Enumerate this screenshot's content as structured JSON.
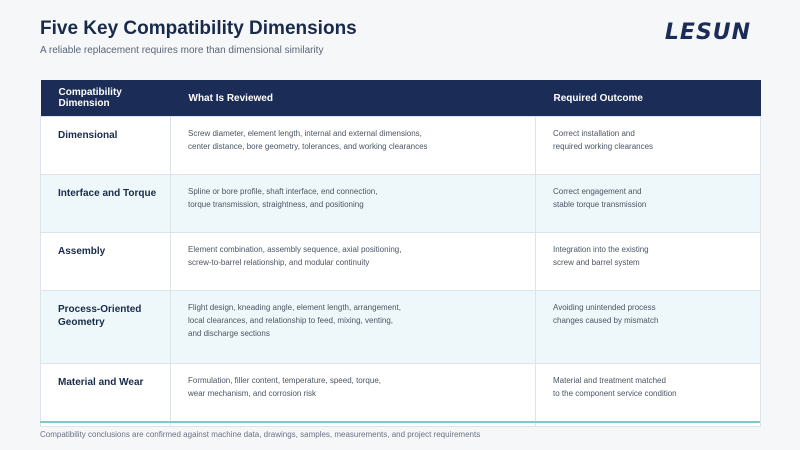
{
  "header": {
    "title": "Five Key Compatibility Dimensions",
    "subtitle": "A reliable replacement requires more than dimensional similarity",
    "logo_text": "LESUN"
  },
  "table": {
    "columns": [
      "Compatibility Dimension",
      "What Is Reviewed",
      "Required Outcome"
    ],
    "rows": [
      {
        "dimension": "Dimensional",
        "reviewed": [
          "Screw diameter, element length, internal and external dimensions,",
          "center distance, bore geometry, tolerances, and working clearances"
        ],
        "outcome": [
          "Correct installation and",
          "required working clearances"
        ]
      },
      {
        "dimension": "Interface and Torque",
        "reviewed": [
          "Spline or bore profile, shaft interface, end connection,",
          "torque transmission, straightness, and positioning"
        ],
        "outcome": [
          "Correct engagement and",
          "stable torque transmission"
        ]
      },
      {
        "dimension": "Assembly",
        "reviewed": [
          "Element combination, assembly sequence, axial positioning,",
          "screw-to-barrel relationship, and modular continuity"
        ],
        "outcome": [
          "Integration into the existing",
          "screw and barrel system"
        ]
      },
      {
        "dimension": [
          "Process-Oriented",
          "Geometry"
        ],
        "reviewed": [
          "Flight design, kneading angle, element length, arrangement,",
          "local clearances, and relationship to feed, mixing, venting,",
          "and discharge sections"
        ],
        "outcome": [
          "Avoiding unintended process",
          "changes caused by mismatch"
        ]
      },
      {
        "dimension": "Material and Wear",
        "reviewed": [
          "Formulation, filler content, temperature, speed, torque,",
          "wear mechanism, and corrosion risk"
        ],
        "outcome": [
          "Material and treatment matched",
          "to the component service condition"
        ]
      }
    ]
  },
  "footer": {
    "note": "Compatibility conclusions are confirmed against machine data, drawings, samples, measurements, and project requirements"
  },
  "colors": {
    "header_bg": "#1b2d57",
    "title": "#1a2a4a",
    "alt_row": "#eef8fa",
    "accent_line": "#7fc8cc"
  }
}
